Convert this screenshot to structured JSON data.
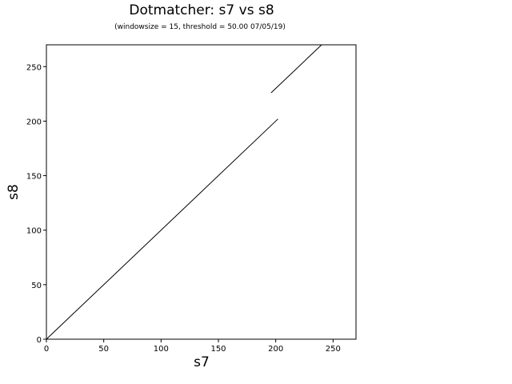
{
  "chart_data": {
    "type": "line",
    "title": "Dotmatcher: s7 vs s8",
    "subtitle": "(windowsize = 15, threshold = 50.00  07/05/19)",
    "xlabel": "s7",
    "ylabel": "s8",
    "xlim": [
      0,
      270
    ],
    "ylim": [
      0,
      270
    ],
    "xticks": [
      "0",
      "50",
      "100",
      "150",
      "200",
      "250"
    ],
    "yticks": [
      "0",
      "50",
      "100",
      "150",
      "200",
      "250"
    ],
    "grid": false,
    "series": [
      {
        "points": [
          [
            0,
            0
          ],
          [
            202,
            202
          ]
        ]
      },
      {
        "points": [
          [
            196,
            226
          ],
          [
            240,
            270
          ]
        ]
      }
    ],
    "colors": {
      "line": "#000000",
      "axis": "#000000",
      "background": "#ffffff"
    }
  }
}
